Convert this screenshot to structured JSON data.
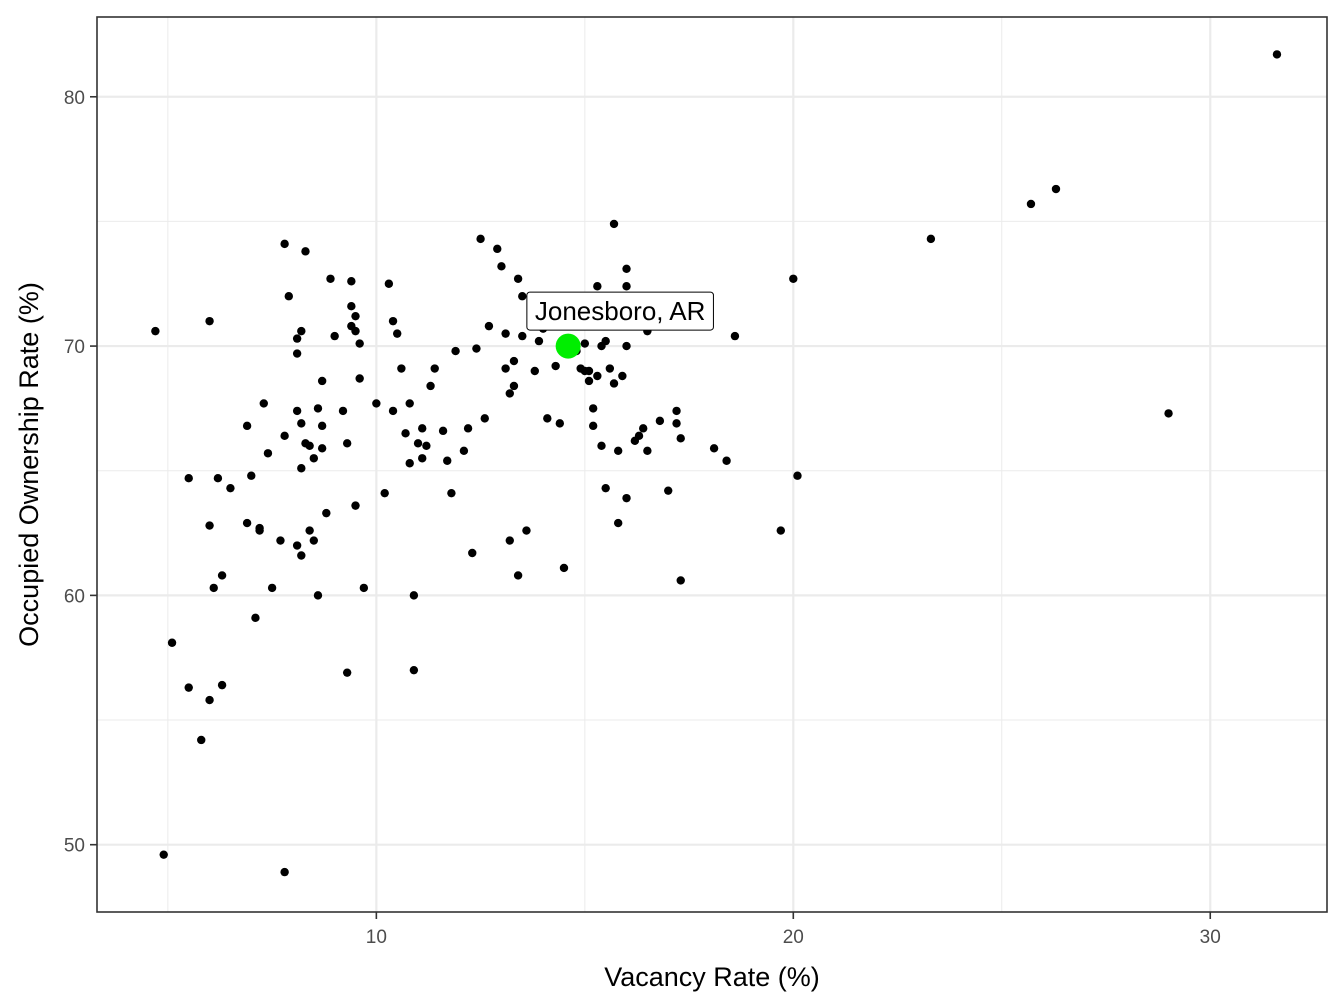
{
  "chart_data": {
    "type": "scatter",
    "title": "",
    "xlabel": "Vacancy Rate (%)",
    "ylabel": "Occupied Ownership Rate (%)",
    "xlim": [
      3.3,
      32.8
    ],
    "ylim": [
      47.3,
      83.2
    ],
    "x_ticks": [
      10,
      20,
      30
    ],
    "x_tick_labels": [
      "10",
      "20",
      "30"
    ],
    "x_minor_ticks": [
      5,
      15,
      25
    ],
    "y_ticks": [
      50,
      60,
      70,
      80
    ],
    "y_tick_labels": [
      "50",
      "60",
      "70",
      "80"
    ],
    "y_minor_ticks": [
      55,
      65,
      75
    ],
    "grid": true,
    "colors": {
      "point": "#000000",
      "highlight": "#00ee00",
      "grid": "#ebebeb",
      "panel_border": "#333333"
    },
    "highlight": {
      "label": "Jonesboro, AR",
      "x": 14.6,
      "y": 70.0
    },
    "points": [
      [
        4.7,
        70.6
      ],
      [
        4.9,
        49.6
      ],
      [
        5.1,
        58.1
      ],
      [
        5.5,
        56.3
      ],
      [
        5.5,
        64.7
      ],
      [
        5.8,
        54.2
      ],
      [
        6.0,
        62.8
      ],
      [
        6.0,
        71.0
      ],
      [
        6.0,
        55.8
      ],
      [
        6.1,
        60.3
      ],
      [
        6.2,
        64.7
      ],
      [
        6.3,
        60.8
      ],
      [
        6.3,
        56.4
      ],
      [
        6.5,
        64.3
      ],
      [
        6.9,
        62.9
      ],
      [
        6.9,
        66.8
      ],
      [
        7.0,
        64.8
      ],
      [
        7.1,
        59.1
      ],
      [
        7.2,
        62.7
      ],
      [
        7.2,
        62.6
      ],
      [
        7.3,
        67.7
      ],
      [
        7.4,
        65.7
      ],
      [
        7.5,
        60.3
      ],
      [
        7.7,
        62.2
      ],
      [
        7.8,
        66.4
      ],
      [
        7.8,
        74.1
      ],
      [
        7.8,
        48.9
      ],
      [
        7.9,
        72.0
      ],
      [
        8.1,
        62.0
      ],
      [
        8.1,
        69.7
      ],
      [
        8.1,
        70.3
      ],
      [
        8.2,
        70.6
      ],
      [
        8.2,
        66.9
      ],
      [
        8.1,
        67.4
      ],
      [
        8.2,
        61.6
      ],
      [
        8.2,
        65.1
      ],
      [
        8.3,
        73.8
      ],
      [
        8.3,
        66.1
      ],
      [
        8.4,
        66.0
      ],
      [
        8.4,
        62.6
      ],
      [
        8.5,
        62.2
      ],
      [
        8.5,
        65.5
      ],
      [
        8.6,
        67.5
      ],
      [
        8.6,
        60.0
      ],
      [
        8.7,
        66.8
      ],
      [
        8.7,
        68.6
      ],
      [
        8.7,
        65.9
      ],
      [
        8.8,
        63.3
      ],
      [
        8.9,
        72.7
      ],
      [
        9.0,
        70.4
      ],
      [
        9.2,
        67.4
      ],
      [
        9.3,
        66.1
      ],
      [
        9.3,
        56.9
      ],
      [
        9.4,
        71.6
      ],
      [
        9.4,
        70.8
      ],
      [
        9.4,
        72.6
      ],
      [
        9.5,
        71.2
      ],
      [
        9.5,
        70.6
      ],
      [
        9.5,
        63.6
      ],
      [
        9.6,
        70.1
      ],
      [
        9.6,
        68.7
      ],
      [
        9.7,
        60.3
      ],
      [
        10.0,
        67.7
      ],
      [
        10.2,
        64.1
      ],
      [
        10.3,
        72.5
      ],
      [
        10.4,
        67.4
      ],
      [
        10.4,
        71.0
      ],
      [
        10.5,
        70.5
      ],
      [
        10.6,
        69.1
      ],
      [
        10.7,
        66.5
      ],
      [
        10.8,
        67.7
      ],
      [
        10.8,
        65.3
      ],
      [
        10.9,
        57.0
      ],
      [
        10.9,
        60.0
      ],
      [
        11.0,
        66.1
      ],
      [
        11.1,
        65.5
      ],
      [
        11.1,
        66.7
      ],
      [
        11.2,
        66.0
      ],
      [
        11.3,
        68.4
      ],
      [
        11.4,
        69.1
      ],
      [
        11.6,
        66.6
      ],
      [
        11.7,
        65.4
      ],
      [
        11.8,
        64.1
      ],
      [
        11.9,
        69.8
      ],
      [
        12.1,
        65.8
      ],
      [
        12.2,
        66.7
      ],
      [
        12.3,
        61.7
      ],
      [
        12.4,
        69.9
      ],
      [
        12.5,
        74.3
      ],
      [
        12.6,
        67.1
      ],
      [
        12.7,
        70.8
      ],
      [
        12.9,
        73.9
      ],
      [
        13.0,
        73.2
      ],
      [
        13.1,
        69.1
      ],
      [
        13.1,
        70.5
      ],
      [
        13.2,
        68.1
      ],
      [
        13.2,
        62.2
      ],
      [
        13.3,
        68.4
      ],
      [
        13.3,
        69.4
      ],
      [
        13.4,
        72.7
      ],
      [
        13.4,
        60.8
      ],
      [
        13.5,
        70.4
      ],
      [
        13.5,
        72.0
      ],
      [
        13.6,
        62.6
      ],
      [
        13.8,
        69.0
      ],
      [
        13.9,
        70.2
      ],
      [
        14.0,
        70.7
      ],
      [
        14.1,
        67.1
      ],
      [
        14.3,
        69.2
      ],
      [
        14.4,
        66.9
      ],
      [
        14.5,
        71.8
      ],
      [
        14.5,
        61.1
      ],
      [
        14.8,
        69.8
      ],
      [
        14.9,
        69.1
      ],
      [
        15.0,
        70.1
      ],
      [
        15.0,
        69.0
      ],
      [
        15.1,
        68.6
      ],
      [
        15.1,
        69.0
      ],
      [
        15.2,
        66.8
      ],
      [
        15.2,
        67.5
      ],
      [
        15.3,
        68.8
      ],
      [
        15.3,
        72.4
      ],
      [
        15.4,
        70.0
      ],
      [
        15.4,
        66.0
      ],
      [
        15.5,
        64.3
      ],
      [
        15.5,
        70.2
      ],
      [
        15.6,
        69.1
      ],
      [
        15.7,
        68.5
      ],
      [
        15.8,
        65.8
      ],
      [
        16.0,
        70.0
      ],
      [
        16.0,
        73.1
      ],
      [
        16.0,
        72.4
      ],
      [
        16.2,
        66.2
      ],
      [
        16.3,
        66.4
      ],
      [
        16.4,
        66.7
      ],
      [
        16.5,
        70.6
      ],
      [
        16.5,
        65.8
      ],
      [
        16.8,
        67.0
      ],
      [
        17.0,
        64.2
      ],
      [
        17.2,
        67.4
      ],
      [
        15.7,
        74.9
      ],
      [
        15.9,
        68.8
      ],
      [
        15.8,
        62.9
      ],
      [
        16.0,
        63.9
      ],
      [
        17.2,
        66.9
      ],
      [
        17.3,
        66.3
      ],
      [
        17.3,
        60.6
      ],
      [
        18.1,
        65.9
      ],
      [
        18.4,
        65.4
      ],
      [
        18.6,
        70.4
      ],
      [
        19.7,
        62.6
      ],
      [
        20.0,
        72.7
      ],
      [
        20.1,
        64.8
      ],
      [
        23.3,
        74.3
      ],
      [
        25.7,
        75.7
      ],
      [
        26.3,
        76.3
      ],
      [
        29.0,
        67.3
      ],
      [
        31.6,
        81.7
      ]
    ]
  }
}
